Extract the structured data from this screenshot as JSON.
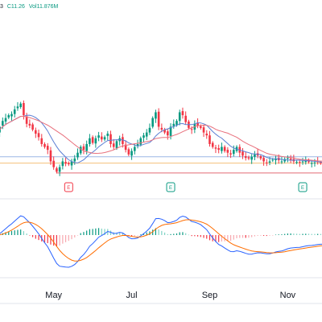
{
  "legend": {
    "interval": "3",
    "close": "C11.26",
    "volume": "Vol11.876M"
  },
  "colors": {
    "up": "#089981",
    "down": "#f23645",
    "ma_fast": "#5b7fd4",
    "ma_slow": "#e8707c",
    "macd_line": "#2962ff",
    "signal_line": "#ff6d00",
    "earnings_down": "#f23645",
    "earnings_up": "#089981",
    "hline_blue": "#9bb7e6",
    "hline_orange": "#f5c07a",
    "hline_red": "#e36b74"
  },
  "earnings": [
    {
      "label": "E",
      "direction": "down"
    },
    {
      "label": "E",
      "direction": "up"
    },
    {
      "label": "E",
      "direction": "up"
    }
  ],
  "chart_data": {
    "type": "candlestick",
    "xlabels": [
      "May",
      "Jul",
      "Sep",
      "Nov"
    ],
    "xlabel_index": [
      19,
      45,
      71,
      97
    ],
    "n_bars": 110,
    "close_last": 11.26,
    "volume_last": "11.876M",
    "price_range": [
      11.0,
      12.7
    ],
    "horizontal_levels": [
      11.38,
      11.27,
      11.1
    ],
    "closes": [
      11.8,
      11.9,
      12.0,
      12.05,
      12.1,
      12.12,
      12.2,
      12.25,
      12.3,
      12.1,
      11.95,
      11.92,
      11.85,
      11.78,
      11.72,
      11.6,
      11.55,
      11.5,
      11.3,
      11.2,
      11.12,
      11.2,
      11.3,
      11.26,
      11.25,
      11.3,
      11.35,
      11.45,
      11.55,
      11.5,
      11.6,
      11.7,
      11.62,
      11.7,
      11.75,
      11.68,
      11.72,
      11.78,
      11.6,
      11.55,
      11.65,
      11.7,
      11.6,
      11.5,
      11.42,
      11.48,
      11.55,
      11.6,
      11.7,
      11.75,
      11.8,
      11.88,
      12.05,
      12.15,
      11.9,
      11.85,
      11.8,
      11.75,
      11.9,
      11.95,
      12.0,
      12.15,
      12.1,
      11.98,
      11.88,
      11.85,
      11.95,
      11.92,
      11.88,
      11.8,
      11.75,
      11.6,
      11.55,
      11.52,
      11.5,
      11.55,
      11.48,
      11.45,
      11.42,
      11.5,
      11.55,
      11.45,
      11.4,
      11.36,
      11.35,
      11.38,
      11.42,
      11.4,
      11.35,
      11.3,
      11.28,
      11.3,
      11.33,
      11.35,
      11.32,
      11.3,
      11.34,
      11.36,
      11.33,
      11.3,
      11.29,
      11.28,
      11.3,
      11.31,
      11.29,
      11.27,
      11.28,
      11.29,
      11.27,
      11.26
    ]
  }
}
